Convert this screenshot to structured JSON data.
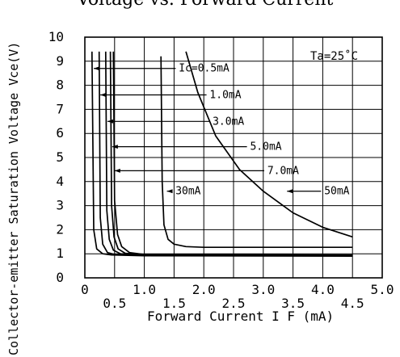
{
  "chart_data": {
    "type": "line",
    "title": "Voltage vs. Forward Current",
    "xlabel": "Forward Current  I F (mA)",
    "ylabel": "Collector-emitter Saturation Voltage Vce(V)",
    "annotation": "Ta=25˚C",
    "xlim": [
      0,
      5.0
    ],
    "ylim": [
      0,
      10
    ],
    "grid": true,
    "x_ticks": [
      {
        "v": 0.0,
        "label": "0"
      },
      {
        "v": 0.5,
        "label": "0.5"
      },
      {
        "v": 1.0,
        "label": "1.0"
      },
      {
        "v": 1.5,
        "label": "1.5"
      },
      {
        "v": 2.0,
        "label": "2.0"
      },
      {
        "v": 2.5,
        "label": "2.5"
      },
      {
        "v": 3.0,
        "label": "3.0"
      },
      {
        "v": 3.5,
        "label": "3.5"
      },
      {
        "v": 4.0,
        "label": "4.0"
      },
      {
        "v": 4.5,
        "label": "4.5"
      },
      {
        "v": 5.0,
        "label": "5.0"
      }
    ],
    "y_ticks": [
      {
        "v": 0,
        "label": "0"
      },
      {
        "v": 1,
        "label": "1"
      },
      {
        "v": 2,
        "label": "2"
      },
      {
        "v": 3,
        "label": "3"
      },
      {
        "v": 4,
        "label": "4"
      },
      {
        "v": 5,
        "label": "5"
      },
      {
        "v": 6,
        "label": "6"
      },
      {
        "v": 7,
        "label": "7"
      },
      {
        "v": 8,
        "label": "8"
      },
      {
        "v": 9,
        "label": "9"
      },
      {
        "v": 10,
        "label": "10"
      }
    ],
    "series": [
      {
        "name": "Ic=0.5mA",
        "x": [
          0.12,
          0.15,
          0.2,
          0.3,
          0.45,
          1.0,
          4.5
        ],
        "y": [
          9.4,
          2.0,
          1.2,
          1.0,
          0.95,
          0.92,
          0.9
        ]
      },
      {
        "name": "1.0mA",
        "x": [
          0.24,
          0.26,
          0.3,
          0.38,
          0.5,
          1.0,
          4.5
        ],
        "y": [
          9.4,
          2.5,
          1.4,
          1.05,
          0.97,
          0.93,
          0.92
        ]
      },
      {
        "name": "3.0mA",
        "x": [
          0.35,
          0.37,
          0.41,
          0.48,
          0.6,
          1.0,
          4.5
        ],
        "y": [
          9.4,
          2.8,
          1.6,
          1.15,
          1.0,
          0.95,
          0.93
        ]
      },
      {
        "name": "5.0mA",
        "x": [
          0.43,
          0.45,
          0.49,
          0.56,
          0.68,
          1.0,
          4.5
        ],
        "y": [
          9.4,
          3.0,
          1.7,
          1.2,
          1.02,
          0.96,
          0.94
        ]
      },
      {
        "name": "7.0mA",
        "x": [
          0.48,
          0.5,
          0.55,
          0.62,
          0.75,
          1.0,
          4.5
        ],
        "y": [
          9.4,
          3.2,
          1.8,
          1.3,
          1.05,
          0.97,
          0.95
        ]
      },
      {
        "name": "30mA",
        "x": [
          1.28,
          1.3,
          1.33,
          1.4,
          1.5,
          1.7,
          2.0,
          3.0,
          4.5
        ],
        "y": [
          9.2,
          4.0,
          2.2,
          1.6,
          1.4,
          1.3,
          1.27,
          1.27,
          1.27
        ]
      },
      {
        "name": "50mA",
        "x": [
          1.7,
          1.9,
          2.2,
          2.6,
          3.0,
          3.5,
          4.0,
          4.5
        ],
        "y": [
          9.4,
          7.7,
          5.9,
          4.5,
          3.6,
          2.7,
          2.1,
          1.7
        ]
      }
    ],
    "curve_labels": [
      {
        "text": "Ic=0.5mA",
        "x": 2.43,
        "y": 8.7,
        "arrow_to": 0.15
      },
      {
        "text": "1.0mA",
        "x": 2.63,
        "y": 7.6,
        "arrow_to": 0.26
      },
      {
        "text": "3.0mA",
        "x": 2.68,
        "y": 6.5,
        "arrow_to": 0.38
      },
      {
        "text": "5.0mA",
        "x": 3.31,
        "y": 5.45,
        "arrow_to": 0.46
      },
      {
        "text": "7.0mA",
        "x": 3.6,
        "y": 4.45,
        "arrow_to": 0.5
      },
      {
        "text": "30mA",
        "x": 1.95,
        "y": 3.6,
        "arrow_to": 1.38
      },
      {
        "text": "50mA",
        "x": 4.45,
        "y": 3.6,
        "arrow_to": 3.4
      }
    ]
  }
}
